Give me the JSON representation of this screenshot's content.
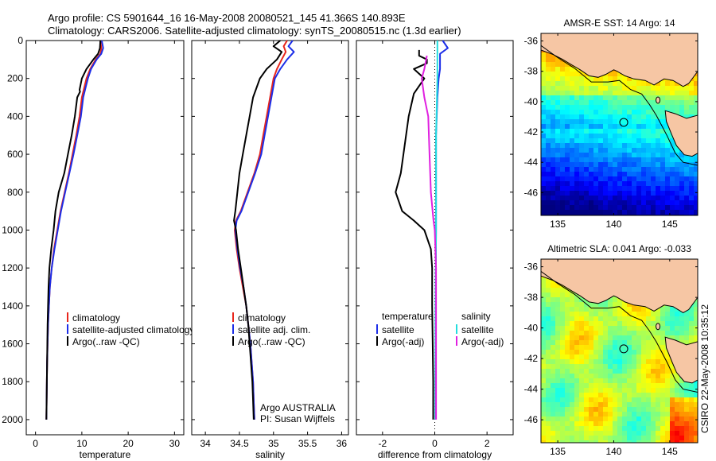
{
  "title_line1": "Argo profile: CS 5901644_16 16-May-2008 20080521_145 41.366S 140.893E",
  "title_line2": "Climatology: CARS2006. Satellite-adjusted climatology: synTS_20080515.nc (1.3d earlier)",
  "footer_text": "CSIRO 22-May-2008 10:35:12",
  "colors": {
    "climatology": "#e8261c",
    "satellite": "#1c2ee8",
    "argo": "#000000",
    "cyan": "#22dddd",
    "magenta": "#e020e0",
    "land": "#f6c6a4"
  },
  "chart_data": [
    {
      "type": "line",
      "xlabel": "temperature",
      "ylabel": "",
      "xlim": [
        -2,
        32
      ],
      "ylim": [
        0,
        2080
      ],
      "y_reversed": true,
      "xticks": [
        0,
        10,
        20,
        30
      ],
      "yticks": [
        0,
        200,
        400,
        600,
        800,
        1000,
        1200,
        1400,
        1600,
        1800,
        2000
      ],
      "legend": {
        "position": "lower-middle",
        "entries": [
          "climatology",
          "satellite-adjusted climatology",
          "Argo(..raw -QC)"
        ]
      },
      "series": [
        {
          "name": "climatology",
          "color_key": "climatology",
          "points": [
            [
              14.0,
              0
            ],
            [
              14.2,
              40
            ],
            [
              14.0,
              70
            ],
            [
              13.0,
              100
            ],
            [
              11.8,
              150
            ],
            [
              11.0,
              200
            ],
            [
              10.5,
              250
            ],
            [
              10.0,
              300
            ],
            [
              9.5,
              400
            ],
            [
              8.8,
              500
            ],
            [
              8.0,
              600
            ],
            [
              7.2,
              700
            ],
            [
              6.3,
              800
            ],
            [
              5.4,
              900
            ],
            [
              4.7,
              1000
            ],
            [
              4.0,
              1100
            ],
            [
              3.5,
              1200
            ],
            [
              3.1,
              1300
            ],
            [
              2.9,
              1400
            ],
            [
              2.7,
              1500
            ],
            [
              2.6,
              1600
            ],
            [
              2.5,
              1700
            ],
            [
              2.45,
              1800
            ],
            [
              2.4,
              1900
            ],
            [
              2.35,
              2000
            ]
          ]
        },
        {
          "name": "satellite-adjusted climatology",
          "color_key": "satellite",
          "points": [
            [
              14.3,
              0
            ],
            [
              14.6,
              40
            ],
            [
              14.2,
              70
            ],
            [
              13.2,
              100
            ],
            [
              12.0,
              150
            ],
            [
              11.3,
              200
            ],
            [
              10.8,
              250
            ],
            [
              10.3,
              300
            ],
            [
              9.8,
              400
            ],
            [
              9.0,
              500
            ],
            [
              8.2,
              600
            ],
            [
              7.3,
              700
            ],
            [
              6.4,
              800
            ],
            [
              5.5,
              900
            ],
            [
              4.8,
              1000
            ],
            [
              4.1,
              1100
            ],
            [
              3.5,
              1200
            ],
            [
              3.1,
              1300
            ],
            [
              2.9,
              1400
            ],
            [
              2.7,
              1500
            ],
            [
              2.6,
              1600
            ],
            [
              2.5,
              1700
            ],
            [
              2.45,
              1800
            ],
            [
              2.4,
              1900
            ],
            [
              2.35,
              2000
            ]
          ]
        },
        {
          "name": "Argo(..raw -QC)",
          "color_key": "argo",
          "points": [
            [
              14.0,
              0
            ],
            [
              13.9,
              40
            ],
            [
              13.5,
              70
            ],
            [
              12.5,
              100
            ],
            [
              11.0,
              150
            ],
            [
              10.0,
              200
            ],
            [
              9.5,
              260
            ],
            [
              9.6,
              270
            ],
            [
              9.0,
              300
            ],
            [
              8.5,
              400
            ],
            [
              7.8,
              500
            ],
            [
              7.0,
              600
            ],
            [
              6.2,
              700
            ],
            [
              5.0,
              800
            ],
            [
              4.3,
              900
            ],
            [
              3.9,
              1000
            ],
            [
              3.4,
              1100
            ],
            [
              3.0,
              1200
            ],
            [
              2.8,
              1300
            ],
            [
              2.7,
              1400
            ],
            [
              2.6,
              1500
            ],
            [
              2.55,
              1600
            ],
            [
              2.5,
              1700
            ],
            [
              2.45,
              1800
            ],
            [
              2.4,
              1900
            ],
            [
              2.35,
              2000
            ]
          ]
        }
      ]
    },
    {
      "type": "line",
      "xlabel": "salinity",
      "ylabel": "",
      "xlim": [
        33.8,
        36.1
      ],
      "ylim": [
        0,
        2080
      ],
      "y_reversed": true,
      "xticks": [
        34,
        34.5,
        35,
        35.5,
        36
      ],
      "xticklabels": [
        "34",
        "34.5",
        "35",
        "35.5",
        "36"
      ],
      "yticks": [
        0,
        200,
        400,
        600,
        800,
        1000,
        1200,
        1400,
        1600,
        1800,
        2000
      ],
      "legend": {
        "position": "lower-middle",
        "entries": [
          "climatology",
          "satellite adj. clim.",
          "Argo(..raw -QC)"
        ]
      },
      "annotations": [
        "Argo AUSTRALIA",
        "PI: Susan Wijffels"
      ],
      "series": [
        {
          "name": "climatology",
          "color_key": "climatology",
          "points": [
            [
              35.2,
              0
            ],
            [
              35.15,
              30
            ],
            [
              35.18,
              60
            ],
            [
              35.12,
              100
            ],
            [
              35.05,
              150
            ],
            [
              35.0,
              200
            ],
            [
              34.95,
              300
            ],
            [
              34.9,
              400
            ],
            [
              34.85,
              500
            ],
            [
              34.8,
              600
            ],
            [
              34.72,
              700
            ],
            [
              34.62,
              800
            ],
            [
              34.52,
              900
            ],
            [
              34.45,
              950
            ],
            [
              34.43,
              1000
            ],
            [
              34.46,
              1100
            ],
            [
              34.5,
              1200
            ],
            [
              34.55,
              1300
            ],
            [
              34.6,
              1400
            ],
            [
              34.63,
              1500
            ],
            [
              34.66,
              1600
            ],
            [
              34.68,
              1700
            ],
            [
              34.7,
              1800
            ],
            [
              34.71,
              1900
            ],
            [
              34.72,
              2000
            ]
          ]
        },
        {
          "name": "satellite adj. clim.",
          "color_key": "satellite",
          "points": [
            [
              35.28,
              0
            ],
            [
              35.22,
              30
            ],
            [
              35.3,
              60
            ],
            [
              35.2,
              100
            ],
            [
              35.1,
              150
            ],
            [
              35.02,
              200
            ],
            [
              34.97,
              300
            ],
            [
              34.92,
              400
            ],
            [
              34.87,
              500
            ],
            [
              34.82,
              600
            ],
            [
              34.73,
              700
            ],
            [
              34.63,
              800
            ],
            [
              34.53,
              900
            ],
            [
              34.46,
              950
            ],
            [
              34.44,
              1000
            ],
            [
              34.47,
              1100
            ],
            [
              34.51,
              1200
            ],
            [
              34.56,
              1300
            ],
            [
              34.6,
              1400
            ],
            [
              34.63,
              1500
            ],
            [
              34.66,
              1600
            ],
            [
              34.68,
              1700
            ],
            [
              34.7,
              1800
            ],
            [
              34.71,
              1900
            ],
            [
              34.72,
              2000
            ]
          ]
        },
        {
          "name": "Argo(..raw -QC)",
          "color_key": "argo",
          "points": [
            [
              35.1,
              0
            ],
            [
              35.0,
              30
            ],
            [
              35.12,
              60
            ],
            [
              35.05,
              100
            ],
            [
              34.9,
              150
            ],
            [
              34.8,
              200
            ],
            [
              34.7,
              300
            ],
            [
              34.65,
              400
            ],
            [
              34.6,
              500
            ],
            [
              34.55,
              600
            ],
            [
              34.5,
              700
            ],
            [
              34.47,
              800
            ],
            [
              34.44,
              900
            ],
            [
              34.42,
              950
            ],
            [
              34.45,
              1000
            ],
            [
              34.48,
              1100
            ],
            [
              34.52,
              1200
            ],
            [
              34.56,
              1300
            ],
            [
              34.6,
              1400
            ],
            [
              34.63,
              1500
            ],
            [
              34.65,
              1600
            ],
            [
              34.67,
              1700
            ],
            [
              34.69,
              1800
            ],
            [
              34.7,
              1900
            ],
            [
              34.71,
              2000
            ]
          ]
        }
      ]
    },
    {
      "type": "line",
      "xlabel": "difference from climatology",
      "ylabel": "",
      "xlim": [
        -3,
        3
      ],
      "ylim": [
        0,
        2080
      ],
      "y_reversed": true,
      "xticks": [
        -2,
        0,
        2
      ],
      "yticks": [
        0,
        200,
        400,
        600,
        800,
        1000,
        1200,
        1400,
        1600,
        1800,
        2000
      ],
      "legend": {
        "position": "middle",
        "columns": [
          {
            "heading": "temperature",
            "entries": [
              "satellite",
              "Argo(-adj)"
            ]
          },
          {
            "heading": "salinity",
            "entries": [
              "satellite",
              "Argo(-adj)"
            ]
          }
        ]
      },
      "series": [
        {
          "name": "temperature satellite",
          "color_key": "satellite",
          "points": [
            [
              0.3,
              0
            ],
            [
              0.5,
              40
            ],
            [
              0.2,
              70
            ],
            [
              0.2,
              100
            ],
            [
              0.2,
              150
            ],
            [
              0.15,
              200
            ],
            [
              0.1,
              300
            ],
            [
              0.05,
              500
            ],
            [
              0.05,
              1000
            ],
            [
              0.03,
              1500
            ],
            [
              0.02,
              2000
            ]
          ]
        },
        {
          "name": "temperature Argo(-adj)",
          "color_key": "argo",
          "points": [
            [
              -0.6,
              50
            ],
            [
              -0.6,
              80
            ],
            [
              -0.3,
              100
            ],
            [
              -0.3,
              120
            ],
            [
              -0.8,
              150
            ],
            [
              -0.4,
              200
            ],
            [
              -0.8,
              280
            ],
            [
              -1.0,
              400
            ],
            [
              -1.2,
              600
            ],
            [
              -1.3,
              700
            ],
            [
              -1.5,
              800
            ],
            [
              -1.25,
              900
            ],
            [
              -0.8,
              950
            ],
            [
              -0.4,
              1000
            ],
            [
              -0.15,
              1100
            ],
            [
              -0.1,
              1200
            ],
            [
              -0.1,
              1400
            ],
            [
              -0.08,
              1600
            ],
            [
              -0.06,
              1800
            ],
            [
              -0.06,
              2000
            ]
          ]
        },
        {
          "name": "salinity satellite",
          "color_key": "cyan",
          "points": [
            [
              0.1,
              0
            ],
            [
              0.1,
              200
            ],
            [
              0.05,
              500
            ],
            [
              0.05,
              1000
            ],
            [
              0.02,
              1500
            ],
            [
              0.02,
              2000
            ]
          ]
        },
        {
          "name": "salinity Argo(-adj)",
          "color_key": "magenta",
          "points": [
            [
              -0.3,
              80
            ],
            [
              -0.4,
              150
            ],
            [
              -0.5,
              200
            ],
            [
              -0.4,
              300
            ],
            [
              -0.25,
              400
            ],
            [
              -0.2,
              600
            ],
            [
              -0.15,
              800
            ],
            [
              -0.05,
              950
            ],
            [
              0.0,
              1000
            ],
            [
              0.05,
              1200
            ],
            [
              0.05,
              1600
            ],
            [
              0.05,
              2000
            ]
          ]
        }
      ]
    },
    {
      "type": "heatmap",
      "title": "AMSR-E SST: 14 Argo: 14",
      "xlim": [
        133.5,
        147.5
      ],
      "ylim": [
        -47.5,
        -35.5
      ],
      "xticks": [
        135,
        140,
        145
      ],
      "yticks": [
        -36,
        -38,
        -40,
        -42,
        -44,
        -46
      ],
      "marker": {
        "lon": 140.893,
        "lat": -41.366
      }
    },
    {
      "type": "heatmap",
      "title": "Altimetric SLA: 0.041 Argo: -0.033",
      "xlim": [
        133.5,
        147.5
      ],
      "ylim": [
        -47.5,
        -35.5
      ],
      "xticks": [
        135,
        140,
        145
      ],
      "yticks": [
        -36,
        -38,
        -40,
        -42,
        -44,
        -46
      ],
      "marker": {
        "lon": 140.893,
        "lat": -41.366
      }
    }
  ]
}
